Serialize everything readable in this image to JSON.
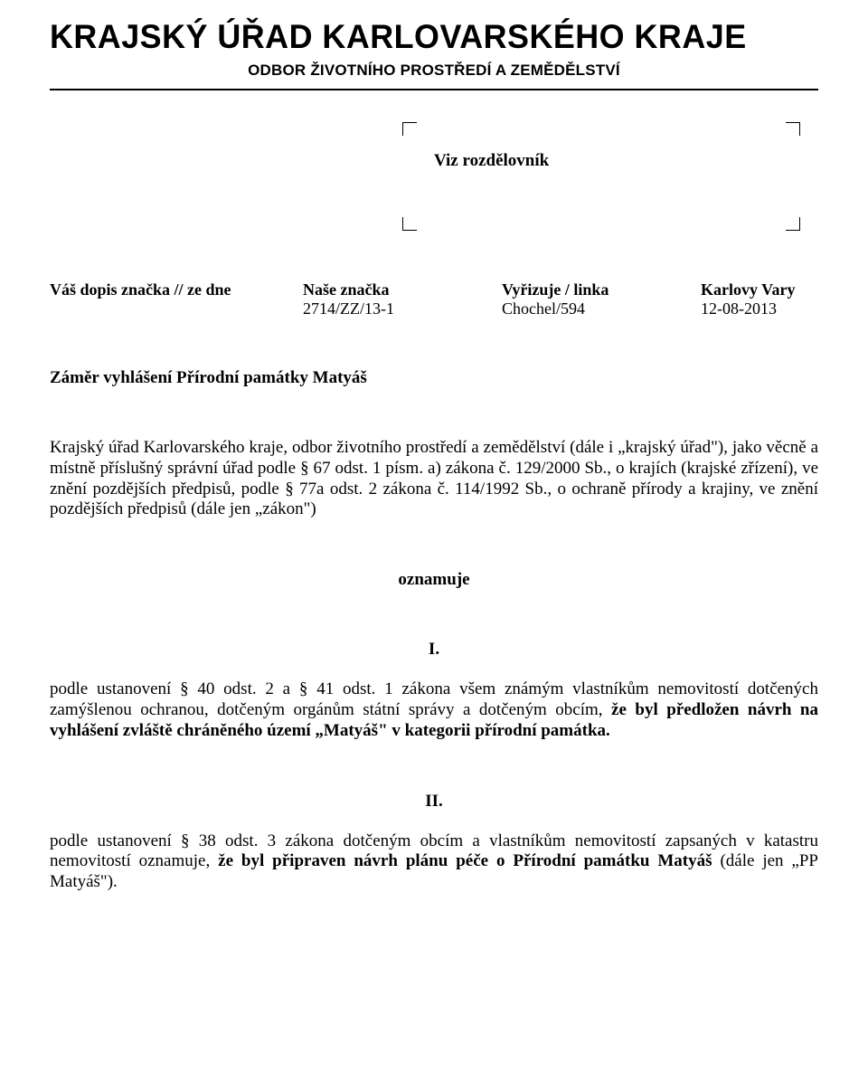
{
  "header": {
    "title": "KRAJSKÝ ÚŘAD KARLOVARSKÉHO KRAJE",
    "subtitle": "ODBOR ŽIVOTNÍHO PROSTŘEDÍ A ZEMĚDĚLSTVÍ"
  },
  "address": {
    "text": "Viz rozdělovník"
  },
  "refs": {
    "headers": {
      "col1": "Váš dopis značka // ze dne",
      "col2": "Naše značka",
      "col3": "Vyřizuje / linka",
      "col4": "Karlovy Vary"
    },
    "values": {
      "col1": "",
      "col2": "2714/ZZ/13-1",
      "col3": "Chochel/594",
      "col4": "12-08-2013"
    }
  },
  "title": "Záměr vyhlášení Přírodní památky Matyáš",
  "para1": "Krajský úřad Karlovarského kraje, odbor životního prostředí a zemědělství (dále i „krajský úřad\"), jako věcně a místně příslušný správní úřad podle § 67 odst. 1 písm. a) zákona č. 129/2000 Sb., o krajích (krajské zřízení), ve znění pozdějších předpisů, podle § 77a odst. 2 zákona č. 114/1992 Sb., o ochraně přírody a krajiny, ve znění pozdějších předpisů (dále jen „zákon\")",
  "oznamuje": "oznamuje",
  "sectionI": {
    "number": "I.",
    "text_pre": "podle ustanovení § 40 odst. 2 a § 41 odst. 1 zákona všem známým vlastníkům nemovitostí dotčených zamýšlenou ochranou, dotčeným orgánům státní správy a dotčeným obcím, ",
    "bold": "že byl předložen návrh na vyhlášení zvláště chráněného území „Matyáš\" v kategorii přírodní památka."
  },
  "sectionII": {
    "number": "II.",
    "text_pre": "podle ustanovení § 38 odst. 3 zákona dotčeným obcím a vlastníkům nemovitostí zapsaných v katastru nemovitostí oznamuje, ",
    "bold": "že byl připraven návrh plánu péče o Přírodní památku Matyáš ",
    "text_post": "(dále jen „PP Matyáš\")."
  }
}
